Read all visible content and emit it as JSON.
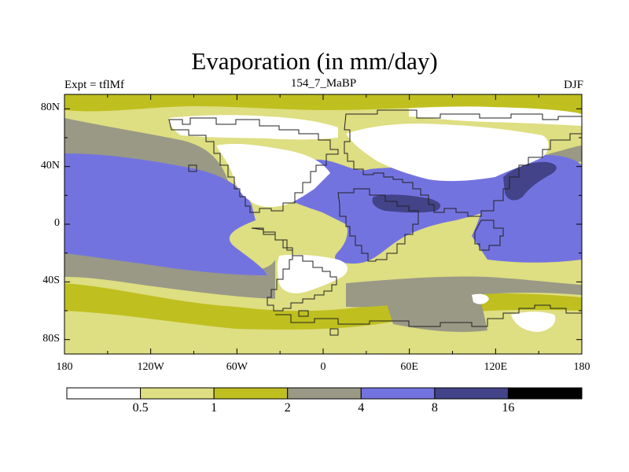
{
  "chart_data": {
    "type": "heatmap",
    "title": "Evaporation (in mm/day)",
    "subtitle_left": "Expt = tflMf",
    "subtitle_center": "154_7_MaBP",
    "subtitle_right": "DJF",
    "x_axis": {
      "range": [
        -180,
        180
      ],
      "ticks": [
        -180,
        -120,
        -60,
        0,
        60,
        120,
        180
      ],
      "tick_labels": [
        "180",
        "120W",
        "60W",
        "0",
        "60E",
        "120E",
        "180"
      ]
    },
    "y_axis": {
      "range": [
        -90,
        90
      ],
      "ticks": [
        80,
        40,
        0,
        -40,
        -80
      ],
      "tick_labels": [
        "80N",
        "40N",
        "0",
        "40S",
        "80S"
      ]
    },
    "colorbar": {
      "levels": [
        "0.5",
        "1",
        "2",
        "4",
        "8",
        "16"
      ],
      "colors": [
        "#ffffff",
        "#dede82",
        "#bfbf1f",
        "#999986",
        "#7373e0",
        "#43438a",
        "#000000"
      ]
    },
    "colors": {
      "lt0_5": "#ffffff",
      "c0_5_1": "#dede82",
      "c1_2": "#bfbf1f",
      "c2_4": "#999986",
      "c4_8": "#7373e0",
      "c8_16": "#43438a",
      "gt16": "#000000"
    }
  }
}
